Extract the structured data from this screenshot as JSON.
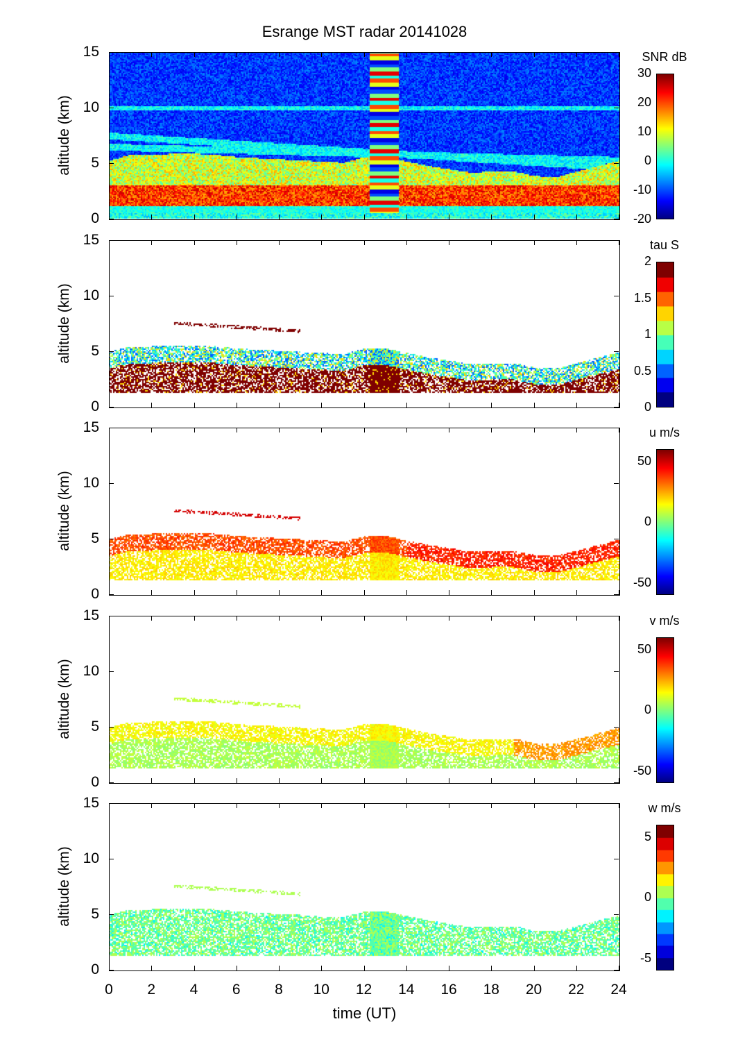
{
  "chart_data": {
    "type": "heatmap",
    "title": "Esrange MST radar 20141028",
    "xlabel": "time (UT)",
    "xlim": [
      0,
      24
    ],
    "xticks": [
      "0",
      "2",
      "4",
      "6",
      "8",
      "10",
      "12",
      "14",
      "16",
      "18",
      "20",
      "22",
      "24"
    ],
    "data_gap_hours": [
      12.2,
      13.6
    ],
    "echo_top_km_by_hour": [
      5.0,
      5.5,
      5.5,
      5.6,
      5.6,
      5.5,
      5.3,
      5.2,
      5.1,
      5.0,
      4.9,
      4.8,
      5.3,
      5.3,
      4.9,
      4.5,
      4.2,
      3.9,
      4.0,
      4.0,
      3.6,
      3.5,
      4.0,
      4.5,
      5.0
    ],
    "panels": [
      {
        "id": "snr",
        "ylabel": "altitude (km)",
        "ylim": [
          0,
          15
        ],
        "yticks": [
          "0",
          "5",
          "10",
          "15"
        ],
        "cb_label": "SNR dB",
        "clim": [
          -20,
          30
        ],
        "cb_ticks": [
          "30",
          "20",
          "10",
          "0",
          "-10",
          "-20"
        ],
        "cb_tick_values": [
          30,
          20,
          10,
          0,
          -10,
          -20
        ],
        "levels": 64,
        "typical": {
          "below_3km": 20,
          "3_to_6km": 5,
          "above_6km": -12
        }
      },
      {
        "id": "tau",
        "ylabel": "altitude (km)",
        "ylim": [
          0,
          15
        ],
        "yticks": [
          "0",
          "5",
          "10",
          "15"
        ],
        "cb_label": "tau S",
        "clim": [
          0,
          2
        ],
        "cb_ticks": [
          "2",
          "1.5",
          "1",
          "0.5",
          "0"
        ],
        "cb_tick_values": [
          2,
          1.5,
          1,
          0.5,
          0
        ],
        "levels": 10,
        "typical": {
          "below_3km": 2.0,
          "3_to_6km": 0.7
        }
      },
      {
        "id": "u",
        "ylabel": "altitude (km)",
        "ylim": [
          0,
          15
        ],
        "yticks": [
          "0",
          "5",
          "10",
          "15"
        ],
        "cb_label": "u m/s",
        "clim": [
          -60,
          60
        ],
        "cb_ticks": [
          "50",
          "0",
          "-50"
        ],
        "cb_tick_values": [
          50,
          0,
          -50
        ],
        "levels": 64,
        "typical": {
          "below_3km": 15,
          "3_to_6km": 38
        }
      },
      {
        "id": "v",
        "ylabel": "altitude (km)",
        "ylim": [
          0,
          15
        ],
        "yticks": [
          "0",
          "5",
          "10",
          "15"
        ],
        "cb_label": "v m/s",
        "clim": [
          -60,
          60
        ],
        "cb_ticks": [
          "50",
          "0",
          "-50"
        ],
        "cb_tick_values": [
          50,
          0,
          -50
        ],
        "levels": 64,
        "typical": {
          "below_3km": 5,
          "3_to_6km": 20
        }
      },
      {
        "id": "w",
        "ylabel": "altitude (km)",
        "ylim": [
          0,
          15
        ],
        "yticks": [
          "0",
          "5",
          "10",
          "15"
        ],
        "cb_label": "w m/s",
        "clim": [
          -6,
          6
        ],
        "cb_ticks": [
          "5",
          "0",
          "-5"
        ],
        "cb_tick_values": [
          5,
          0,
          -5
        ],
        "levels": 12,
        "typical": {
          "below_3km": -0.5,
          "3_to_6km": -0.3
        }
      }
    ]
  }
}
